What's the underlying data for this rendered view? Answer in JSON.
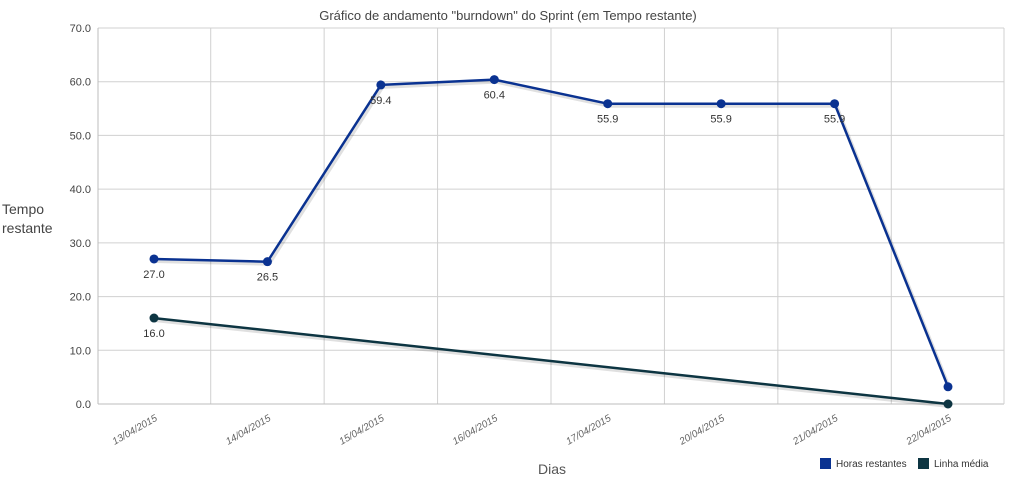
{
  "chart_data": {
    "type": "line",
    "title": "Gráfico de andamento \"burndown\" do Sprint (em Tempo restante)",
    "ylabel_line1": "Tempo",
    "ylabel_line2": "restante",
    "xlabel": "Dias",
    "ylim": [
      0,
      70
    ],
    "yticks": [
      "0.0",
      "10.0",
      "20.0",
      "30.0",
      "40.0",
      "50.0",
      "60.0",
      "70.0"
    ],
    "categories": [
      "13/04/2015",
      "14/04/2015",
      "15/04/2015",
      "16/04/2015",
      "17/04/2015",
      "20/04/2015",
      "21/04/2015",
      "22/04/2015"
    ],
    "grid": true,
    "legend_position": "bottom-right",
    "series": [
      {
        "name": "Horas restantes",
        "color": "#0a3291",
        "x": [
          0,
          1,
          2,
          3,
          4,
          5,
          6,
          7
        ],
        "values": [
          27.0,
          26.5,
          59.4,
          60.4,
          55.9,
          55.9,
          55.9,
          3.2
        ],
        "labels": [
          "27.0",
          "26.5",
          "59.4",
          "60.4",
          "55.9",
          "55.9",
          "55.9",
          ""
        ]
      },
      {
        "name": "Linha média",
        "color": "#0d3542",
        "x": [
          0,
          7
        ],
        "values": [
          16.0,
          0.0
        ],
        "labels": [
          "16.0",
          ""
        ]
      }
    ]
  }
}
